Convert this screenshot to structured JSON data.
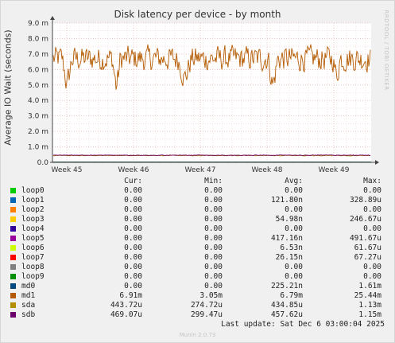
{
  "chart_data": {
    "type": "line",
    "title": "Disk latency per device - by month",
    "ylabel": "Average IO Wait (seconds)",
    "y_ticks": [
      {
        "value": 0,
        "label": "0.0"
      },
      {
        "value": 0.001,
        "label": "1.0 m"
      },
      {
        "value": 0.002,
        "label": "2.0 m"
      },
      {
        "value": 0.003,
        "label": "3.0 m"
      },
      {
        "value": 0.004,
        "label": "4.0 m"
      },
      {
        "value": 0.005,
        "label": "5.0 m"
      },
      {
        "value": 0.006,
        "label": "6.0 m"
      },
      {
        "value": 0.007,
        "label": "7.0 m"
      },
      {
        "value": 0.008,
        "label": "8.0 m"
      },
      {
        "value": 0.009,
        "label": "9.0 m"
      }
    ],
    "ylim": [
      0,
      0.009
    ],
    "x_ticks": [
      "Week 45",
      "Week 46",
      "Week 47",
      "Week 48",
      "Week 49"
    ],
    "grid": true,
    "columns": [
      "Cur:",
      "Min:",
      "Avg:",
      "Max:"
    ],
    "series": [
      {
        "name": "loop0",
        "color": "#00cc00",
        "cur": "0.00",
        "min": "0.00",
        "avg": "0.00",
        "max": "0.00"
      },
      {
        "name": "loop1",
        "color": "#0066b3",
        "cur": "0.00",
        "min": "0.00",
        "avg": "121.80n",
        "max": "328.89u"
      },
      {
        "name": "loop2",
        "color": "#ff8000",
        "cur": "0.00",
        "min": "0.00",
        "avg": "0.00",
        "max": "0.00"
      },
      {
        "name": "loop3",
        "color": "#ffcc00",
        "cur": "0.00",
        "min": "0.00",
        "avg": "54.98n",
        "max": "246.67u"
      },
      {
        "name": "loop4",
        "color": "#330099",
        "cur": "0.00",
        "min": "0.00",
        "avg": "0.00",
        "max": "0.00"
      },
      {
        "name": "loop5",
        "color": "#990099",
        "cur": "0.00",
        "min": "0.00",
        "avg": "417.16n",
        "max": "491.67u"
      },
      {
        "name": "loop6",
        "color": "#ccff00",
        "cur": "0.00",
        "min": "0.00",
        "avg": "6.53n",
        "max": "61.67u"
      },
      {
        "name": "loop7",
        "color": "#ff0000",
        "cur": "0.00",
        "min": "0.00",
        "avg": "26.15n",
        "max": "67.27u"
      },
      {
        "name": "loop8",
        "color": "#808080",
        "cur": "0.00",
        "min": "0.00",
        "avg": "0.00",
        "max": "0.00"
      },
      {
        "name": "loop9",
        "color": "#008f00",
        "cur": "0.00",
        "min": "0.00",
        "avg": "0.00",
        "max": "0.00"
      },
      {
        "name": "md0",
        "color": "#00487d",
        "cur": "0.00",
        "min": "0.00",
        "avg": "225.21n",
        "max": "1.61m"
      },
      {
        "name": "md1",
        "color": "#b35a00",
        "cur": "6.91m",
        "min": "3.05m",
        "avg": "6.79m",
        "max": "25.44m"
      },
      {
        "name": "sda",
        "color": "#b38f00",
        "cur": "443.72u",
        "min": "274.72u",
        "avg": "434.85u",
        "max": "1.13m"
      },
      {
        "name": "sdb",
        "color": "#6b006b",
        "cur": "469.07u",
        "min": "299.47u",
        "avg": "457.62u",
        "max": "1.15m"
      }
    ]
  },
  "last_update": "Last update: Sat Dec  6 03:00:04 2025",
  "watermark": "RRDTOOL / TOBI OETIKER",
  "footer": "Munin 2.0.73"
}
